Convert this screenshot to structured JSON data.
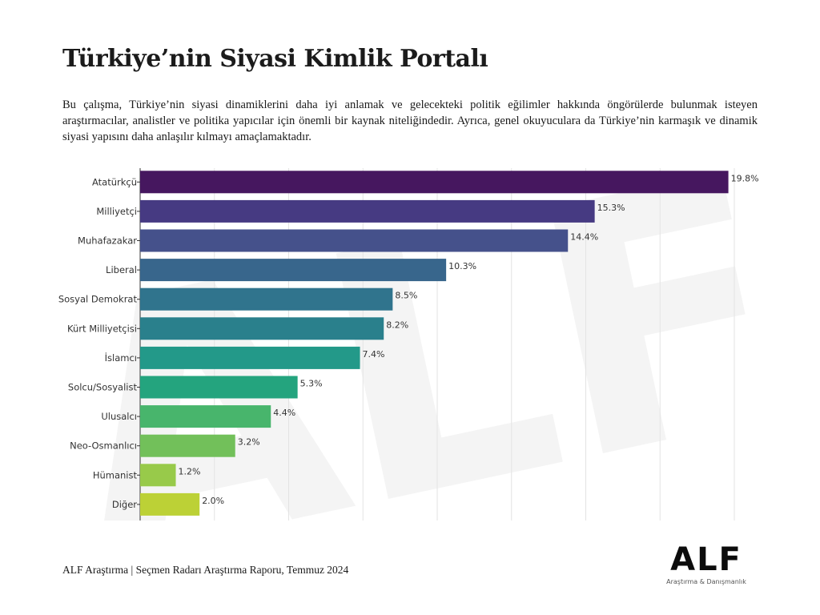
{
  "page": {
    "title": "Türkiye’nin Siyasi Kimlik Portalı",
    "description": "Bu çalışma, Türkiye’nin siyasi dinamiklerini daha iyi anlamak ve gelecekteki politik eğilimler hakkında öngörülerde bulunmak isteyen araştırmacılar, analistler ve politika yapıcılar için önemli bir kaynak niteliğindedir. Ayrıca, genel okuyuculara da Türkiye’nin karmaşık ve dinamik siyasi yapısını daha anlaşılır kılmayı amaçlamaktadır.",
    "footer": "ALF Araştırma | Seçmen Radarı Araştırma Raporu, Temmuz 2024"
  },
  "logo": {
    "text": "ALF",
    "subtitle": "Araştırma & Danışmanlık",
    "watermark_text": "ALF"
  },
  "chart_data": {
    "type": "bar",
    "orientation": "horizontal",
    "categories": [
      "Atatürkçü",
      "Milliyetçi",
      "Muhafazakar",
      "Liberal",
      "Sosyal Demokrat",
      "Kürt Milliyetçisi",
      "İslamcı",
      "Solcu/Sosyalist",
      "Ulusalcı",
      "Neo-Osmanlıcı",
      "Hümanist",
      "Diğer"
    ],
    "values": [
      19.8,
      15.3,
      14.4,
      10.3,
      8.5,
      8.2,
      7.4,
      5.3,
      4.4,
      3.2,
      1.2,
      2.0
    ],
    "data_labels": [
      "19.8%",
      "15.3%",
      "14.4%",
      "10.3%",
      "8.5%",
      "8.2%",
      "7.4%",
      "5.3%",
      "4.4%",
      "3.2%",
      "1.2%",
      "2.0%"
    ],
    "colors": [
      "#46175f",
      "#463a82",
      "#45518b",
      "#38668c",
      "#30748d",
      "#2a808c",
      "#239989",
      "#24a47e",
      "#48b56c",
      "#72c05a",
      "#98ca4a",
      "#bcd136"
    ],
    "xlim": [
      0,
      20
    ],
    "grid": true,
    "legend": "none",
    "title": "",
    "xlabel": "",
    "ylabel": ""
  }
}
